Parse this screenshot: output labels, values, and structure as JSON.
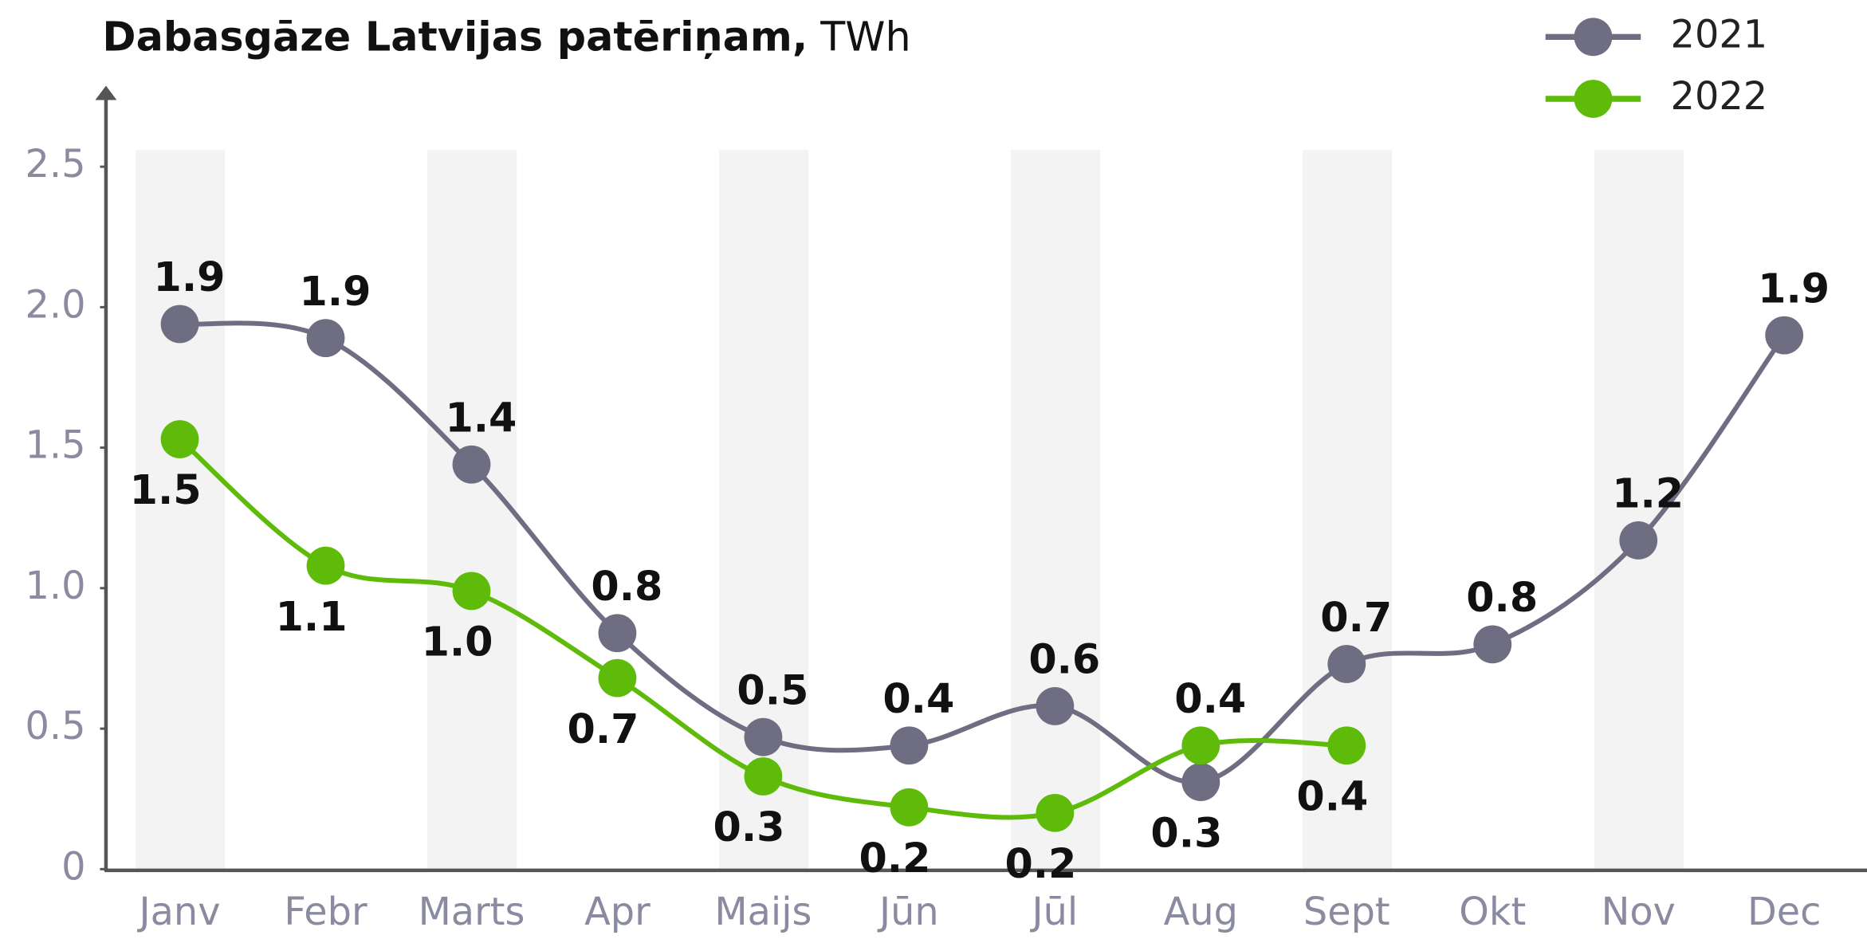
{
  "chart_data": {
    "type": "line",
    "title": "Dabasgāze Latvijas patēriņam,",
    "unit": "TWh",
    "categories": [
      "Janv",
      "Febr",
      "Marts",
      "Apr",
      "Maijs",
      "Jūn",
      "Jūl",
      "Aug",
      "Sept",
      "Okt",
      "Nov",
      "Dec"
    ],
    "series": [
      {
        "name": "2021",
        "color": "#6e6d82",
        "values": [
          1.94,
          1.89,
          1.44,
          0.84,
          0.47,
          0.44,
          0.58,
          0.31,
          0.73,
          0.8,
          1.17,
          1.9
        ],
        "value_labels": [
          "1.9",
          "1.9",
          "1.4",
          "0.8",
          "0.5",
          "0.4",
          "0.6",
          "0.3",
          "0.7",
          "0.8",
          "1.2",
          "1.9"
        ]
      },
      {
        "name": "2022",
        "color": "#5fbb0a",
        "values": [
          1.53,
          1.08,
          0.99,
          0.68,
          0.33,
          0.22,
          0.2,
          0.44,
          0.44,
          null,
          null,
          null
        ],
        "value_labels": [
          "1.5",
          "1.1",
          "1.0",
          "0.7",
          "0.3",
          "0.2",
          "0.2",
          "0.4",
          "0.4",
          null,
          null,
          null
        ]
      }
    ],
    "ylim": [
      0,
      2.75
    ],
    "yticks": [
      0,
      0.5,
      {
        "value": 1,
        "label": "1.0"
      },
      1.5,
      {
        "value": 2,
        "label": "2.0"
      },
      2.5
    ],
    "legend": "top-right",
    "grid": false
  }
}
